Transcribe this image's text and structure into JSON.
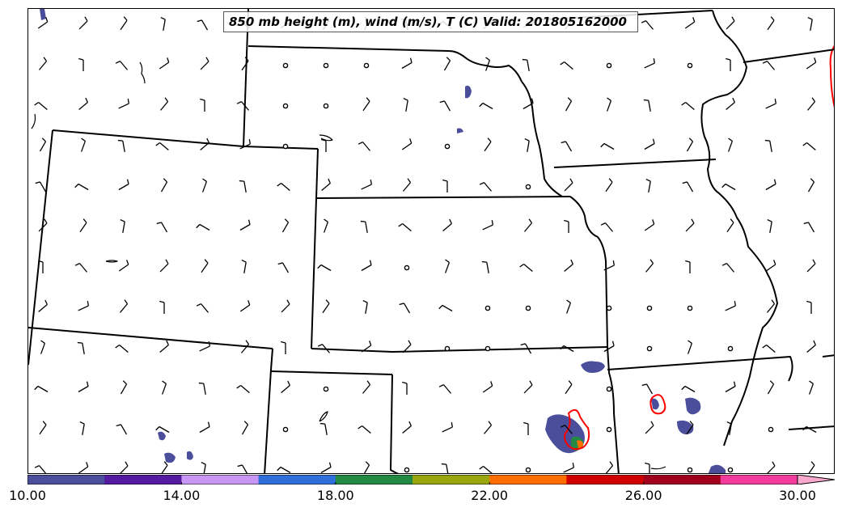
{
  "title": "850 mb height (m), wind (m/s), T (C) Valid: 201805162000",
  "colorbar": {
    "min": 10,
    "max": 30,
    "step": 2,
    "colors": [
      "#4a4e9b",
      "#541aa0",
      "#c896f5",
      "#2f6fdc",
      "#228a44",
      "#9aa60d",
      "#ff6f00",
      "#d10000",
      "#a1001c",
      "#f23c9c",
      "#f9a9cd"
    ],
    "tick_labels": [
      "10.00",
      "14.00",
      "18.00",
      "22.00",
      "26.00",
      "30.00"
    ],
    "tick_values": [
      10,
      14,
      18,
      22,
      26,
      30
    ],
    "extend": "max"
  },
  "map": {
    "region": "Central United States",
    "boundary_color": "#000000",
    "contour_color": "#ff0000"
  },
  "legend_symbols": {
    "wind_barb": "wind-barb-icon",
    "calm": "calm-circle-icon"
  }
}
